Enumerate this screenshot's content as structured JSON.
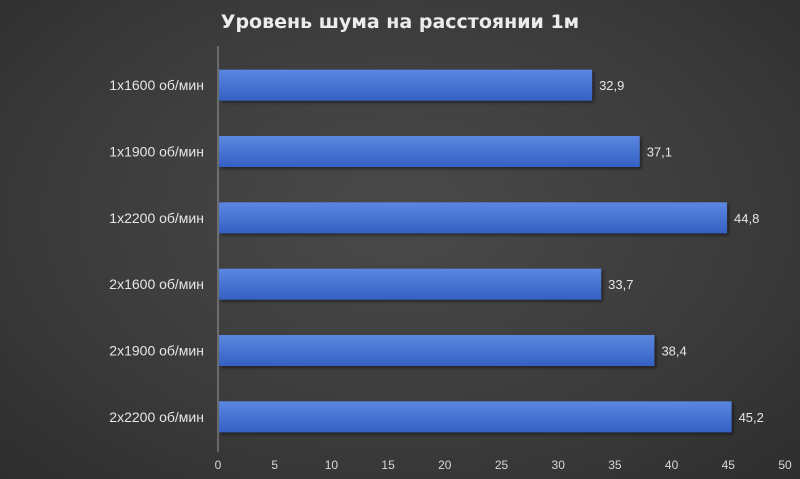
{
  "chart_data": {
    "type": "bar",
    "orientation": "horizontal",
    "title": "Уровень шума на расстоянии 1м",
    "categories": [
      "1x1600 об/мин",
      "1x1900 об/мин",
      "1x2200 об/мин",
      "2x1600 об/мин",
      "2x1900 об/мин",
      "2x2200 об/мин"
    ],
    "values": [
      32.9,
      37.1,
      44.8,
      33.7,
      38.4,
      45.2
    ],
    "data_labels": [
      "32,9",
      "37,1",
      "44,8",
      "33,7",
      "38,4",
      "45,2"
    ],
    "xlim": [
      0,
      50
    ],
    "x_ticks": [
      "0",
      "5",
      "10",
      "15",
      "20",
      "25",
      "30",
      "35",
      "40",
      "45",
      "50"
    ],
    "xlabel": "",
    "ylabel": "",
    "grid": false,
    "legend": "none",
    "colors": {
      "bar_top": "#5b87e0",
      "bar_bottom": "#3460c4",
      "background": "#3c3c3c",
      "text": "#e6e6e6"
    }
  }
}
